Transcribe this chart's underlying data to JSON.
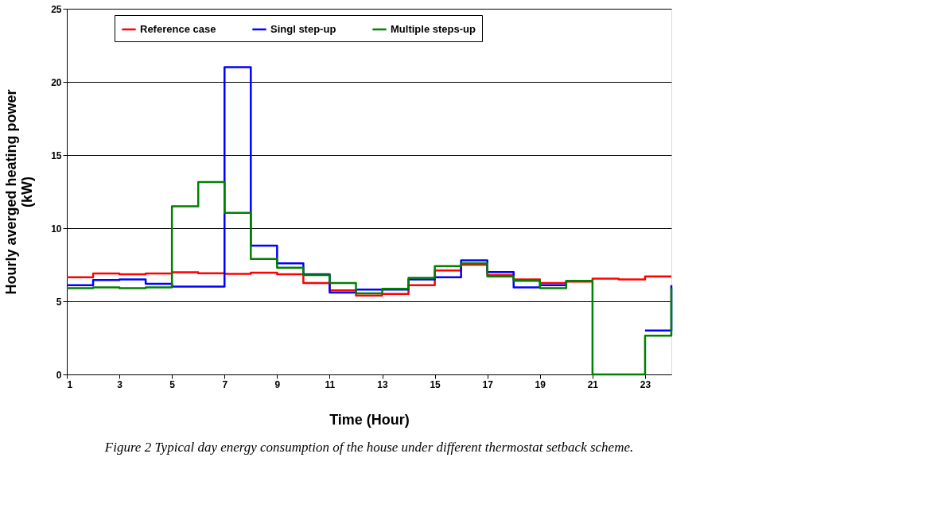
{
  "chart_data": {
    "type": "step",
    "xlabel": "Time (Hour)",
    "ylabel": "Hourly averged heating power\n(kW)",
    "x": [
      1,
      2,
      3,
      4,
      5,
      6,
      7,
      8,
      9,
      10,
      11,
      12,
      13,
      14,
      15,
      16,
      17,
      18,
      19,
      20,
      21,
      22,
      23,
      24
    ],
    "series": [
      {
        "name": "Reference case",
        "color": "#ff0000",
        "values": [
          6.65,
          6.9,
          6.85,
          6.9,
          6.98,
          6.92,
          6.88,
          6.95,
          6.85,
          6.25,
          5.75,
          5.4,
          5.5,
          6.1,
          7.1,
          7.5,
          6.8,
          6.5,
          6.25,
          6.35,
          6.55,
          6.5,
          6.7,
          6.7
        ]
      },
      {
        "name": "Singl step-up",
        "color": "#0000ff",
        "values": [
          6.1,
          6.45,
          6.5,
          6.2,
          6.0,
          6.0,
          21,
          8.8,
          7.6,
          6.85,
          5.6,
          5.8,
          5.8,
          6.5,
          6.65,
          7.8,
          7.0,
          5.95,
          6.1,
          6.4,
          null,
          null,
          3.0,
          6.1
        ]
      },
      {
        "name": "Multiple steps-up",
        "color": "#008000",
        "values": [
          5.9,
          5.95,
          5.9,
          5.95,
          11.5,
          13.15,
          11.05,
          7.9,
          7.3,
          6.8,
          6.25,
          5.55,
          5.85,
          6.6,
          7.4,
          7.6,
          6.7,
          6.4,
          5.9,
          6.4,
          0,
          0,
          2.65,
          5.9
        ]
      }
    ],
    "xlim": [
      1,
      24
    ],
    "xticks": [
      1,
      3,
      5,
      7,
      9,
      11,
      13,
      15,
      17,
      19,
      21,
      23
    ],
    "ylim": [
      0,
      25
    ],
    "yticks": [
      0,
      5,
      10,
      15,
      20,
      25
    ],
    "grid": "y",
    "legend": "top",
    "line_style": "solid",
    "marker": "none",
    "annotations": [
      "Figure 2 Typical day energy consumption of the house under different thermostat setback scheme."
    ]
  }
}
